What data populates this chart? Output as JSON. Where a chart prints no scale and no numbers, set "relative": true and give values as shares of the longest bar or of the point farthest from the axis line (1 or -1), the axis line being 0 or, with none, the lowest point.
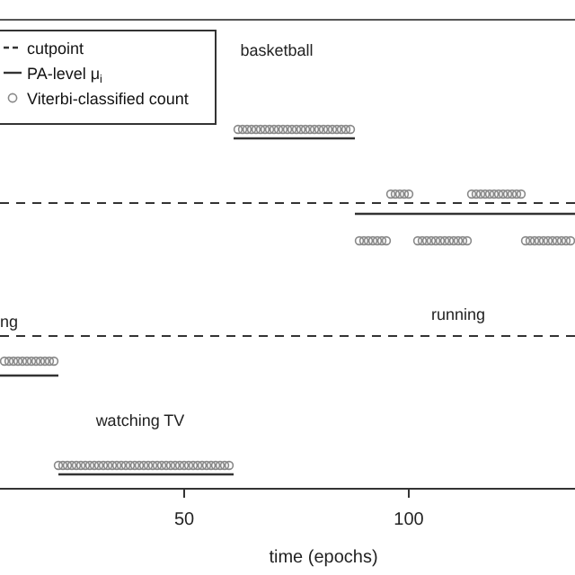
{
  "chart_data": {
    "type": "scatter",
    "xlabel": "time (epochs)",
    "relative": true,
    "xlim": [
      9,
      137
    ],
    "xticks": [
      50,
      100
    ],
    "legend": "top left",
    "annotations": [
      "ng",
      "running",
      "basketball",
      "watching TV"
    ],
    "ref_lines": [
      {
        "axis": "y",
        "value": 0.795,
        "label": "cutpoint",
        "line_style": "dashed",
        "color": "#333333"
      },
      {
        "axis": "y",
        "value": 0.425,
        "line_style": "dashed",
        "color": "#333333"
      }
    ],
    "series": [
      {
        "name": "PA-level μ$_{i}$",
        "type": "line",
        "line_style": "solid",
        "color": "#333333",
        "x": [
          9,
          22
        ],
        "values": [
          0.315,
          0.315
        ]
      },
      {
        "type": "line",
        "line_style": "solid",
        "color": "#333333",
        "x": [
          22,
          61
        ],
        "values": [
          0.04,
          0.04
        ]
      },
      {
        "type": "line",
        "line_style": "solid",
        "color": "#333333",
        "x": [
          61,
          88
        ],
        "values": [
          0.975,
          0.975
        ]
      },
      {
        "type": "line",
        "line_style": "solid",
        "color": "#333333",
        "x": [
          88,
          137
        ],
        "values": [
          0.765,
          0.765
        ]
      },
      {
        "name": "Viterbi-classified count",
        "type": "scatter",
        "marker": "circle",
        "color": "#888888",
        "x": [
          10,
          11,
          12,
          13,
          14,
          15,
          16,
          17,
          18,
          19,
          20,
          21,
          22,
          23,
          24,
          25,
          26,
          27,
          28,
          29,
          30,
          31,
          32,
          33,
          34,
          35,
          36,
          37,
          38,
          39,
          40,
          41,
          42,
          43,
          44,
          45,
          46,
          47,
          48,
          49,
          50,
          51,
          52,
          53,
          54,
          55,
          56,
          57,
          58,
          59,
          60,
          62,
          63,
          64,
          65,
          66,
          67,
          68,
          69,
          70,
          71,
          72,
          73,
          74,
          75,
          76,
          77,
          78,
          79,
          80,
          81,
          82,
          83,
          84,
          85,
          86,
          87,
          89,
          90,
          91,
          92,
          93,
          94,
          95,
          96,
          97,
          98,
          99,
          100,
          102,
          103,
          104,
          105,
          106,
          107,
          108,
          109,
          110,
          111,
          112,
          113,
          114,
          115,
          116,
          117,
          118,
          119,
          120,
          121,
          122,
          123,
          124,
          125,
          126,
          127,
          128,
          129,
          130,
          131,
          132,
          133,
          134,
          135,
          136
        ],
        "values": [
          0.355,
          0.355,
          0.355,
          0.355,
          0.355,
          0.355,
          0.355,
          0.355,
          0.355,
          0.355,
          0.355,
          0.355,
          0.065,
          0.065,
          0.065,
          0.065,
          0.065,
          0.065,
          0.065,
          0.065,
          0.065,
          0.065,
          0.065,
          0.065,
          0.065,
          0.065,
          0.065,
          0.065,
          0.065,
          0.065,
          0.065,
          0.065,
          0.065,
          0.065,
          0.065,
          0.065,
          0.065,
          0.065,
          0.065,
          0.065,
          0.065,
          0.065,
          0.065,
          0.065,
          0.065,
          0.065,
          0.065,
          0.065,
          0.065,
          0.065,
          0.065,
          1,
          1,
          1,
          1,
          1,
          1,
          1,
          1,
          1,
          1,
          1,
          1,
          1,
          1,
          1,
          1,
          1,
          1,
          1,
          1,
          1,
          1,
          1,
          1,
          1,
          1,
          0.69,
          0.69,
          0.69,
          0.69,
          0.69,
          0.69,
          0.69,
          0.82,
          0.82,
          0.82,
          0.82,
          0.82,
          0.69,
          0.69,
          0.69,
          0.69,
          0.69,
          0.69,
          0.69,
          0.69,
          0.69,
          0.69,
          0.69,
          0.69,
          0.82,
          0.82,
          0.82,
          0.82,
          0.82,
          0.82,
          0.82,
          0.82,
          0.82,
          0.82,
          0.82,
          0.82,
          0.69,
          0.69,
          0.69,
          0.69,
          0.69,
          0.69,
          0.69,
          0.69,
          0.69,
          0.69,
          0.69
        ]
      }
    ]
  }
}
